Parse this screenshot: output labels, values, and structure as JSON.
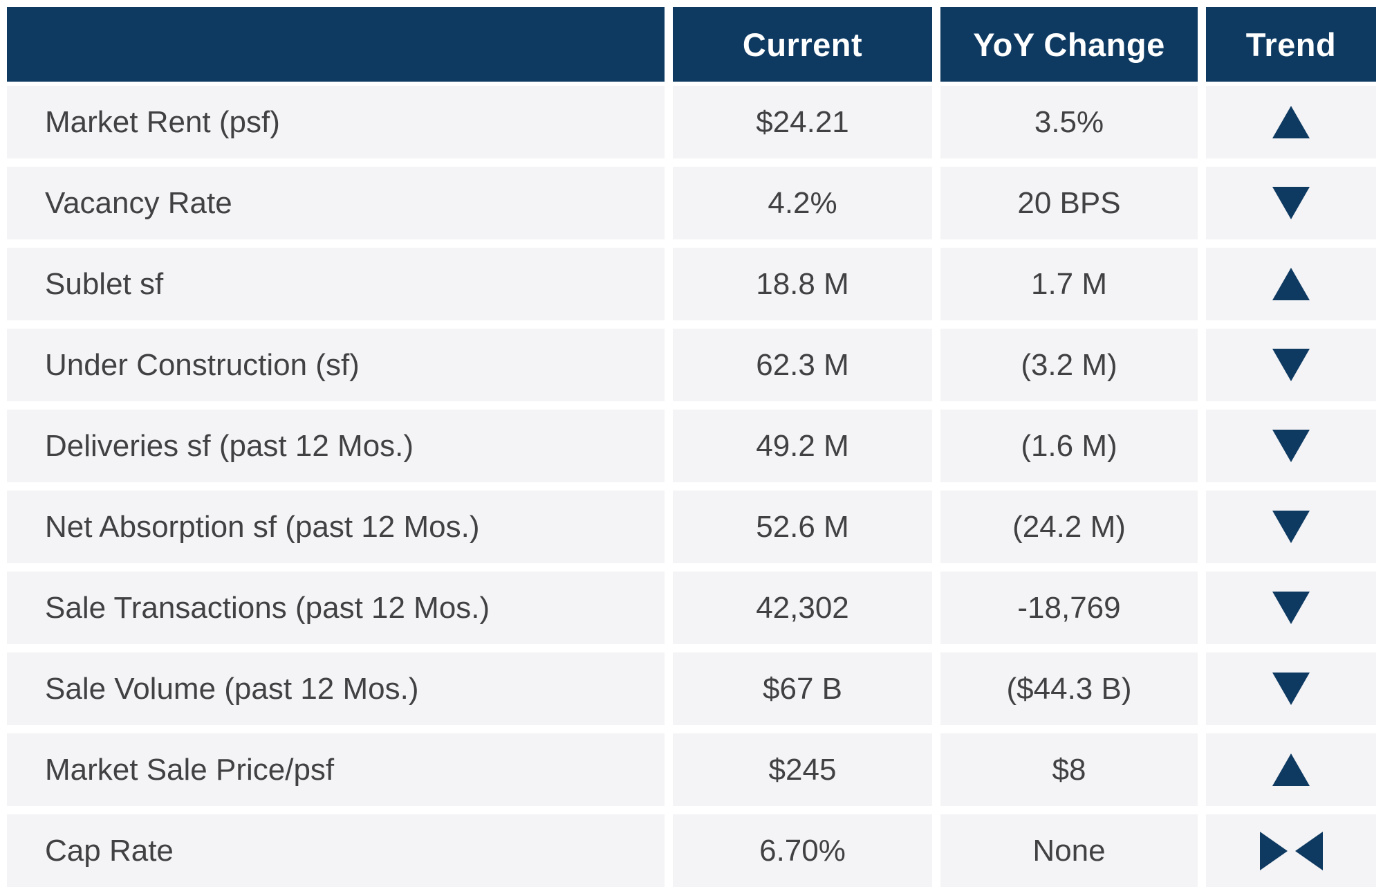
{
  "chart_data": {
    "type": "table",
    "columns": [
      "",
      "Current",
      "YoY Change",
      "Trend"
    ],
    "rows": [
      {
        "label": "Market Rent (psf)",
        "current": "$24.21",
        "yoy_change": "3.5%",
        "trend": "up"
      },
      {
        "label": "Vacancy Rate",
        "current": "4.2%",
        "yoy_change": "20 BPS",
        "trend": "down"
      },
      {
        "label": "Sublet sf",
        "current": "18.8 M",
        "yoy_change": "1.7 M",
        "trend": "up"
      },
      {
        "label": "Under Construction (sf)",
        "current": "62.3 M",
        "yoy_change": "(3.2 M)",
        "trend": "down"
      },
      {
        "label": "Deliveries sf (past 12 Mos.)",
        "current": "49.2 M",
        "yoy_change": "(1.6 M)",
        "trend": "down"
      },
      {
        "label": "Net Absorption sf (past 12 Mos.)",
        "current": "52.6 M",
        "yoy_change": "(24.2 M)",
        "trend": "down"
      },
      {
        "label": "Sale Transactions (past 12 Mos.)",
        "current": "42,302",
        "yoy_change": "-18,769",
        "trend": "down"
      },
      {
        "label": "Sale Volume (past 12 Mos.)",
        "current": "$67 B",
        "yoy_change": "($44.3 B)",
        "trend": "down"
      },
      {
        "label": "Market Sale Price/psf",
        "current": "$245",
        "yoy_change": "$8",
        "trend": "up"
      },
      {
        "label": "Cap Rate",
        "current": "6.70%",
        "yoy_change": "None",
        "trend": "flat"
      }
    ],
    "trend_legend": {
      "up": "up-triangle",
      "down": "down-triangle",
      "flat": "opposing-triangles"
    },
    "colors": {
      "header_bg": "#0E3A62",
      "header_text": "#FFFFFF",
      "row_bg": "#F4F4F6",
      "cell_text": "#414143",
      "trend_icon": "#0E3A62"
    },
    "layout": {
      "grid": "off",
      "header_position": "top"
    }
  }
}
